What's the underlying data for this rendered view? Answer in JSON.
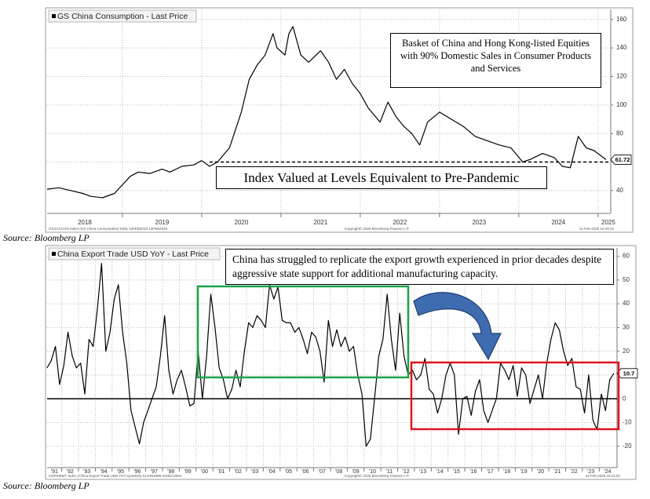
{
  "chart_data": [
    {
      "type": "line",
      "series": [
        {
          "name": "GS China Consumption - Last Price",
          "color": "#000000",
          "values": [
            41,
            42,
            40,
            38,
            36,
            35,
            38,
            44,
            50,
            53,
            52,
            55,
            53,
            57,
            58,
            61,
            57,
            60,
            70,
            95,
            118,
            128,
            135,
            150,
            140,
            135,
            150,
            155,
            135,
            130,
            138,
            130,
            118,
            125,
            115,
            108,
            98,
            88,
            102,
            92,
            85,
            80,
            72,
            88,
            95,
            90,
            85,
            78,
            75,
            72,
            70,
            60,
            62,
            66,
            63,
            57,
            56,
            78,
            70,
            68,
            61.72
          ]
        }
      ],
      "x": [
        2018.05,
        2018.2,
        2018.35,
        2018.5,
        2018.6,
        2018.75,
        2018.9,
        2019.0,
        2019.1,
        2019.2,
        2019.35,
        2019.5,
        2019.6,
        2019.75,
        2019.9,
        2020.0,
        2020.1,
        2020.2,
        2020.35,
        2020.5,
        2020.6,
        2020.7,
        2020.8,
        2020.9,
        2020.95,
        2021.05,
        2021.1,
        2021.15,
        2021.25,
        2021.35,
        2021.5,
        2021.6,
        2021.7,
        2021.8,
        2021.9,
        2022.0,
        2022.1,
        2022.25,
        2022.35,
        2022.45,
        2022.55,
        2022.65,
        2022.75,
        2022.85,
        2023.0,
        2023.15,
        2023.3,
        2023.45,
        2023.6,
        2023.75,
        2023.9,
        2024.05,
        2024.15,
        2024.3,
        2024.45,
        2024.55,
        2024.65,
        2024.75,
        2024.85,
        2024.95,
        2025.1
      ],
      "xlim": [
        2018.05,
        2025.16
      ],
      "xticks": [
        2018,
        2019,
        2020,
        2021,
        2022,
        2023,
        2024,
        2025
      ],
      "ylim": [
        24,
        167
      ],
      "yticks": [
        40,
        60,
        80,
        100,
        120,
        140,
        160
      ],
      "grid": true,
      "reference_line": {
        "y": 60,
        "x_start": 2020.1
      },
      "annotations": [
        "Basket of China and Hong Kong-listed Equities with 90% Domestic Sales in Consumer Products and Services",
        "Index Valued at Levels Equivalent to Pre-Pandemic"
      ],
      "footer": [
        "GSXACCON Index (GS China Consumption) Daily 13FEB2018-13FEB2025",
        "Copyright© 2025 Bloomberg Finance L.P.",
        "11-Feb-2025 16:40:22"
      ],
      "source": "Source: Bloomberg LP"
    },
    {
      "type": "line",
      "series": [
        {
          "name": "China Export Trade USD YoY - Last Price",
          "color": "#000000",
          "values": [
            13,
            16,
            22,
            6,
            14,
            28,
            18,
            13,
            15,
            2,
            25,
            22,
            38,
            57,
            20,
            28,
            42,
            48,
            28,
            15,
            -5,
            -12,
            -19,
            -10,
            -5,
            0,
            5,
            18,
            35,
            12,
            2,
            8,
            12,
            5,
            -3,
            -2,
            20,
            0,
            18,
            44,
            30,
            13,
            8,
            0,
            4,
            12,
            5,
            20,
            32,
            30,
            35,
            33,
            30,
            48,
            42,
            47,
            33,
            32,
            32,
            28,
            30,
            25,
            19,
            28,
            26,
            20,
            7,
            33,
            22,
            29,
            22,
            26,
            20,
            22,
            10,
            2,
            -20,
            -17,
            0,
            18,
            25,
            44,
            25,
            12,
            36,
            18,
            10,
            12,
            8,
            10,
            17,
            4,
            2,
            -6,
            0,
            10,
            15,
            10,
            -15,
            0,
            1,
            -7,
            3,
            8,
            -5,
            -10,
            -5,
            0,
            15,
            12,
            8,
            14,
            1,
            13,
            10,
            -2,
            4,
            10,
            0,
            15,
            25,
            32,
            29,
            20,
            14,
            17,
            5,
            4,
            -6,
            10,
            -9,
            -13,
            2,
            -5,
            8,
            10.7
          ]
        }
      ],
      "x": [
        1991.125,
        1991.375,
        1991.625,
        1991.875,
        1992.125,
        1992.375,
        1992.625,
        1992.875,
        1993.125,
        1993.375,
        1993.625,
        1993.875,
        1994.125,
        1994.375,
        1994.625,
        1994.875,
        1995.125,
        1995.375,
        1995.625,
        1995.875,
        1996.125,
        1996.375,
        1996.625,
        1996.875,
        1997.125,
        1997.375,
        1997.625,
        1997.875,
        1998.125,
        1998.375,
        1998.625,
        1998.875,
        1999.125,
        1999.375,
        1999.625,
        1999.875,
        2000.125,
        2000.375,
        2000.625,
        2000.875,
        2001.125,
        2001.375,
        2001.625,
        2001.875,
        2002.125,
        2002.375,
        2002.625,
        2002.875,
        2003.125,
        2003.375,
        2003.625,
        2003.875,
        2004.125,
        2004.375,
        2004.625,
        2004.875,
        2005.125,
        2005.375,
        2005.625,
        2005.875,
        2006.125,
        2006.375,
        2006.625,
        2006.875,
        2007.125,
        2007.375,
        2007.625,
        2007.875,
        2008.125,
        2008.375,
        2008.625,
        2008.875,
        2009.125,
        2009.375,
        2009.625,
        2009.875,
        2010.125,
        2010.375,
        2010.625,
        2010.875,
        2011.125,
        2011.375,
        2011.625,
        2011.875,
        2012.125,
        2012.375,
        2012.625,
        2012.875,
        2013.125,
        2013.375,
        2013.625,
        2013.875,
        2014.125,
        2014.375,
        2014.625,
        2014.875,
        2015.125,
        2015.375,
        2015.625,
        2015.875,
        2016.125,
        2016.375,
        2016.625,
        2016.875,
        2017.125,
        2017.375,
        2017.625,
        2017.875,
        2018.125,
        2018.375,
        2018.625,
        2018.875,
        2019.125,
        2019.375,
        2019.625,
        2019.875,
        2020.125,
        2020.375,
        2020.625,
        2020.875,
        2021.125,
        2021.375,
        2021.625,
        2021.875,
        2022.125,
        2022.375,
        2022.625,
        2022.875,
        2023.125,
        2023.375,
        2023.625,
        2023.875,
        2024.125,
        2024.375,
        2024.625,
        2024.875
      ],
      "xlim": [
        1991.13,
        2025.06
      ],
      "xticks": [
        {
          "value": 1991,
          "label": "'91"
        },
        {
          "value": 1992,
          "label": "'92"
        },
        {
          "value": 1993,
          "label": "'93"
        },
        {
          "value": 1994,
          "label": "'94"
        },
        {
          "value": 1995,
          "label": "'95"
        },
        {
          "value": 1996,
          "label": "'96"
        },
        {
          "value": 1997,
          "label": "'97"
        },
        {
          "value": 1998,
          "label": "'98"
        },
        {
          "value": 1999,
          "label": "'99"
        },
        {
          "value": 2000,
          "label": "'00"
        },
        {
          "value": 2001,
          "label": "'01"
        },
        {
          "value": 2002,
          "label": "'02"
        },
        {
          "value": 2003,
          "label": "'03"
        },
        {
          "value": 2004,
          "label": "'04"
        },
        {
          "value": 2005,
          "label": "'05"
        },
        {
          "value": 2006,
          "label": "'06"
        },
        {
          "value": 2007,
          "label": "'07"
        },
        {
          "value": 2008,
          "label": "'08"
        },
        {
          "value": 2009,
          "label": "'09"
        },
        {
          "value": 2010,
          "label": "'10"
        },
        {
          "value": 2011,
          "label": "'11"
        },
        {
          "value": 2012,
          "label": "'12"
        },
        {
          "value": 2013,
          "label": "'13"
        },
        {
          "value": 2014,
          "label": "'14"
        },
        {
          "value": 2015,
          "label": "'15"
        },
        {
          "value": 2016,
          "label": "'16"
        },
        {
          "value": 2017,
          "label": "'17"
        },
        {
          "value": 2018,
          "label": "'18"
        },
        {
          "value": 2019,
          "label": "'19"
        },
        {
          "value": 2020,
          "label": "'20"
        },
        {
          "value": 2021,
          "label": "'21"
        },
        {
          "value": 2022,
          "label": "'22"
        },
        {
          "value": 2023,
          "label": "'23"
        },
        {
          "value": 2024,
          "label": "'24"
        }
      ],
      "ylim": [
        -29,
        63.5
      ],
      "yticks": [
        -20,
        -10,
        0,
        10,
        20,
        30,
        40,
        50,
        60
      ],
      "grid": true,
      "zero_line": true,
      "annotations": [
        "China has struggled to replicate the export growth experienced in prior decades despite aggressive state support for additional manufacturing capacity."
      ],
      "footer": [
        "CNFRIEMY Index (China Export Trade USD YoY) Quarterly 01JAN1990-31DEC2024",
        "Copyright© 2025 Bloomberg Finance L.P.",
        "11-Feb-2025 16:44:51"
      ],
      "source": "Source: Bloomberg LP"
    }
  ]
}
